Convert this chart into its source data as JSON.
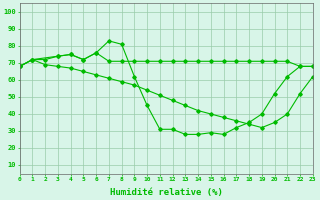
{
  "line1": {
    "x": [
      0,
      1,
      2,
      3,
      4,
      5,
      6,
      7,
      8,
      9,
      10,
      11,
      12,
      13,
      14,
      15,
      16,
      17,
      18,
      19,
      20,
      21,
      22,
      23
    ],
    "y": [
      68,
      72,
      72,
      74,
      75,
      72,
      76,
      71,
      71,
      71,
      71,
      71,
      71,
      71,
      71,
      71,
      71,
      71,
      71,
      71,
      71,
      71,
      68,
      68
    ]
  },
  "line2": {
    "x": [
      0,
      1,
      3,
      4,
      5,
      6,
      7,
      8,
      9,
      10,
      11,
      12,
      13,
      14,
      15,
      16,
      17,
      18,
      19,
      20,
      21,
      22,
      23
    ],
    "y": [
      68,
      72,
      74,
      75,
      72,
      76,
      83,
      81,
      62,
      45,
      31,
      31,
      28,
      28,
      29,
      28,
      32,
      35,
      40,
      52,
      62,
      68,
      68
    ]
  },
  "line3": {
    "x": [
      0,
      1,
      2,
      3,
      4,
      5,
      6,
      7,
      8,
      9,
      10,
      11,
      12,
      13,
      14,
      15,
      16,
      17,
      18,
      19,
      20,
      21,
      22,
      23
    ],
    "y": [
      68,
      72,
      69,
      68,
      67,
      65,
      63,
      61,
      59,
      57,
      54,
      51,
      48,
      45,
      42,
      40,
      38,
      36,
      34,
      32,
      35,
      40,
      52,
      62
    ]
  },
  "line_color": "#00bb00",
  "bg_color": "#d8f5e8",
  "grid_color": "#99ccaa",
  "xlabel": "Humidité relative (%)",
  "xlim": [
    0,
    23
  ],
  "ylim": [
    5,
    105
  ],
  "yticks": [
    10,
    20,
    30,
    40,
    50,
    60,
    70,
    80,
    90,
    100
  ],
  "xticks": [
    0,
    1,
    2,
    3,
    4,
    5,
    6,
    7,
    8,
    9,
    10,
    11,
    12,
    13,
    14,
    15,
    16,
    17,
    18,
    19,
    20,
    21,
    22,
    23
  ],
  "figsize": [
    3.2,
    2.0
  ],
  "dpi": 100
}
